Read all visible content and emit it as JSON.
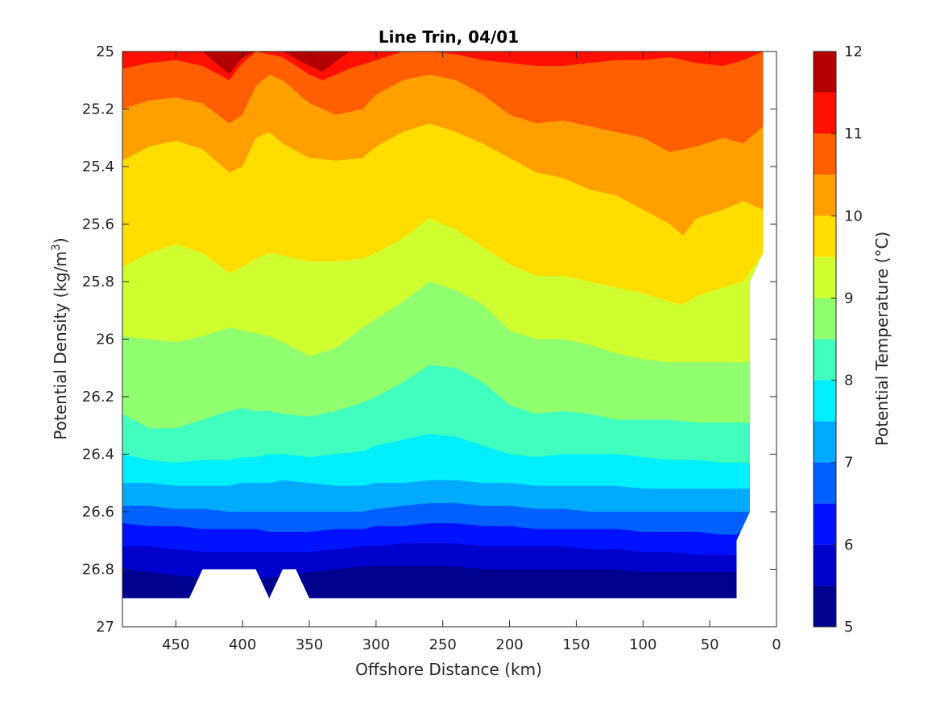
{
  "chart_data": {
    "type": "filled-contour",
    "title": "Line Trin, 04/01",
    "xlabel": "Offshore Distance (km)",
    "ylabel": "Potential Density (kg/m^3)",
    "ylabel_main": "Potential Density (kg/m",
    "ylabel_sup": "3",
    "ylabel_end": ")",
    "colorbar_label": "Potential Temperature (°C)",
    "x_reversed": true,
    "y_reversed": true,
    "xlim": [
      0,
      490
    ],
    "ylim": [
      25,
      27
    ],
    "xticks": [
      450,
      400,
      350,
      300,
      250,
      200,
      150,
      100,
      50,
      0
    ],
    "yticks": [
      "25",
      "25.2",
      "25.4",
      "25.6",
      "25.8",
      "26",
      "26.2",
      "26.4",
      "26.6",
      "26.8",
      "27"
    ],
    "colorbar_ticks": [
      "12",
      "11",
      "10",
      "9",
      "8",
      "7",
      "6",
      "5"
    ],
    "clim": [
      5,
      12
    ],
    "level_step": 0.5,
    "colors": [
      "#00008f",
      "#0000cc",
      "#0011ff",
      "#0060ff",
      "#00aaff",
      "#00efff",
      "#40ffbf",
      "#8fff70",
      "#cfff30",
      "#ffdd00",
      "#ffa000",
      "#ff5f00",
      "#ff1000",
      "#b40000"
    ],
    "bands_top_to_bottom": [
      {
        "range": [
          11.5,
          12.0
        ],
        "color": "#b40000"
      },
      {
        "range": [
          11.0,
          11.5
        ],
        "color": "#ff1000"
      },
      {
        "range": [
          10.5,
          11.0
        ],
        "color": "#ff5f00"
      },
      {
        "range": [
          10.0,
          10.5
        ],
        "color": "#ffa000"
      },
      {
        "range": [
          9.5,
          10.0
        ],
        "color": "#ffdd00"
      },
      {
        "range": [
          9.0,
          9.5
        ],
        "color": "#cfff30"
      },
      {
        "range": [
          8.5,
          9.0
        ],
        "color": "#8fff70"
      },
      {
        "range": [
          8.0,
          8.5
        ],
        "color": "#40ffbf"
      },
      {
        "range": [
          7.5,
          8.0
        ],
        "color": "#00efff"
      },
      {
        "range": [
          7.0,
          7.5
        ],
        "color": "#00aaff"
      },
      {
        "range": [
          6.5,
          7.0
        ],
        "color": "#0060ff"
      },
      {
        "range": [
          6.0,
          6.5
        ],
        "color": "#0011ff"
      },
      {
        "range": [
          5.5,
          6.0
        ],
        "color": "#0000cc"
      },
      {
        "range": [
          5.0,
          5.5
        ],
        "color": "#00008f"
      }
    ],
    "isotherms_density": [
      {
        "temp": 11.5,
        "x": [
          490,
          470,
          430,
          410,
          400,
          390,
          370,
          350,
          340,
          320,
          300,
          280,
          250,
          200,
          150,
          100,
          70,
          50,
          30,
          10
        ],
        "y": [
          25.0,
          25.0,
          25.0,
          25.08,
          25.02,
          25.0,
          25.0,
          25.05,
          25.07,
          25.0,
          25.0,
          25.0,
          25.0,
          25.0,
          25.0,
          25.0,
          25.0,
          25.0,
          25.0,
          25.0
        ]
      },
      {
        "temp": 11.0,
        "x": [
          490,
          470,
          450,
          430,
          410,
          400,
          390,
          370,
          350,
          340,
          320,
          300,
          280,
          260,
          240,
          220,
          200,
          180,
          160,
          140,
          120,
          100,
          80,
          60,
          40,
          25,
          10
        ],
        "y": [
          25.06,
          25.04,
          25.03,
          25.05,
          25.1,
          25.04,
          25.0,
          25.02,
          25.08,
          25.1,
          25.06,
          25.03,
          25.0,
          25.0,
          25.01,
          25.03,
          25.04,
          25.05,
          25.05,
          25.04,
          25.03,
          25.03,
          25.02,
          25.04,
          25.05,
          25.03,
          25.0
        ]
      },
      {
        "temp": 10.5,
        "x": [
          490,
          470,
          450,
          430,
          410,
          400,
          390,
          380,
          370,
          350,
          330,
          310,
          300,
          280,
          260,
          240,
          220,
          200,
          180,
          160,
          140,
          120,
          100,
          80,
          60,
          40,
          25,
          10
        ],
        "y": [
          25.2,
          25.17,
          25.16,
          25.18,
          25.25,
          25.22,
          25.12,
          25.08,
          25.1,
          25.18,
          25.22,
          25.2,
          25.15,
          25.1,
          25.08,
          25.1,
          25.15,
          25.22,
          25.25,
          25.24,
          25.26,
          25.28,
          25.3,
          25.35,
          25.33,
          25.3,
          25.32,
          25.26
        ]
      },
      {
        "temp": 10.0,
        "x": [
          490,
          470,
          450,
          430,
          410,
          400,
          390,
          380,
          370,
          350,
          330,
          310,
          300,
          280,
          260,
          240,
          220,
          200,
          180,
          160,
          140,
          120,
          100,
          80,
          70,
          60,
          40,
          25,
          10
        ],
        "y": [
          25.38,
          25.33,
          25.31,
          25.34,
          25.42,
          25.4,
          25.3,
          25.28,
          25.32,
          25.37,
          25.38,
          25.37,
          25.33,
          25.28,
          25.25,
          25.28,
          25.32,
          25.37,
          25.42,
          25.44,
          25.48,
          25.5,
          25.55,
          25.6,
          25.64,
          25.58,
          25.55,
          25.52,
          25.55
        ]
      },
      {
        "temp": 9.5,
        "x": [
          490,
          470,
          450,
          430,
          410,
          400,
          390,
          380,
          370,
          350,
          330,
          310,
          300,
          280,
          260,
          240,
          220,
          200,
          180,
          160,
          140,
          120,
          100,
          80,
          70,
          60,
          40,
          25,
          10
        ],
        "y": [
          25.75,
          25.7,
          25.67,
          25.7,
          25.77,
          25.75,
          25.72,
          25.7,
          25.71,
          25.73,
          25.73,
          25.72,
          25.7,
          25.65,
          25.58,
          25.62,
          25.68,
          25.74,
          25.78,
          25.78,
          25.8,
          25.82,
          25.84,
          25.87,
          25.88,
          25.85,
          25.82,
          25.8,
          25.7
        ]
      },
      {
        "temp": 9.0,
        "x": [
          490,
          470,
          450,
          430,
          410,
          400,
          390,
          380,
          370,
          350,
          330,
          310,
          300,
          280,
          260,
          240,
          220,
          200,
          180,
          160,
          140,
          120,
          100,
          80,
          60,
          40,
          25,
          20
        ],
        "y": [
          25.99,
          26.0,
          26.01,
          25.99,
          25.96,
          25.97,
          25.98,
          25.99,
          26.01,
          26.06,
          26.03,
          25.96,
          25.93,
          25.87,
          25.8,
          25.83,
          25.88,
          25.97,
          26.0,
          26.0,
          26.02,
          26.05,
          26.07,
          26.08,
          26.08,
          26.08,
          26.08,
          26.08
        ]
      },
      {
        "temp": 8.5,
        "x": [
          490,
          470,
          450,
          430,
          410,
          400,
          390,
          380,
          370,
          350,
          330,
          310,
          300,
          280,
          260,
          240,
          220,
          200,
          180,
          160,
          140,
          120,
          100,
          80,
          60,
          40,
          25,
          20
        ],
        "y": [
          26.26,
          26.31,
          26.31,
          26.28,
          26.25,
          26.24,
          26.25,
          26.25,
          26.26,
          26.27,
          26.25,
          26.22,
          26.2,
          26.15,
          26.09,
          26.1,
          26.15,
          26.23,
          26.26,
          26.25,
          26.26,
          26.28,
          26.28,
          26.28,
          26.29,
          26.29,
          26.29,
          26.29
        ]
      },
      {
        "temp": 8.0,
        "x": [
          490,
          470,
          450,
          430,
          410,
          400,
          390,
          380,
          370,
          350,
          330,
          310,
          300,
          280,
          260,
          240,
          220,
          200,
          180,
          160,
          140,
          120,
          100,
          80,
          60,
          40,
          25,
          20
        ],
        "y": [
          26.4,
          26.42,
          26.43,
          26.42,
          26.42,
          26.41,
          26.41,
          26.4,
          26.4,
          26.41,
          26.4,
          26.39,
          26.37,
          26.35,
          26.33,
          26.34,
          26.37,
          26.4,
          26.41,
          26.4,
          26.4,
          26.4,
          26.41,
          26.42,
          26.42,
          26.43,
          26.43,
          26.43
        ]
      },
      {
        "temp": 7.5,
        "x": [
          490,
          470,
          450,
          430,
          410,
          400,
          390,
          380,
          370,
          350,
          330,
          310,
          300,
          280,
          260,
          240,
          220,
          200,
          180,
          160,
          140,
          120,
          100,
          80,
          60,
          40,
          25,
          20
        ],
        "y": [
          26.5,
          26.5,
          26.51,
          26.51,
          26.51,
          26.5,
          26.5,
          26.5,
          26.49,
          26.5,
          26.51,
          26.51,
          26.5,
          26.5,
          26.49,
          26.49,
          26.5,
          26.5,
          26.51,
          26.51,
          26.51,
          26.51,
          26.52,
          26.52,
          26.52,
          26.52,
          26.52,
          26.52
        ]
      },
      {
        "temp": 7.0,
        "x": [
          490,
          470,
          450,
          430,
          410,
          400,
          390,
          380,
          370,
          350,
          330,
          310,
          300,
          280,
          260,
          240,
          220,
          200,
          180,
          160,
          140,
          120,
          100,
          80,
          60,
          40,
          25,
          20
        ],
        "y": [
          26.58,
          26.58,
          26.59,
          26.59,
          26.6,
          26.6,
          26.6,
          26.6,
          26.6,
          26.6,
          26.6,
          26.6,
          26.59,
          26.58,
          26.57,
          26.57,
          26.58,
          26.58,
          26.59,
          26.59,
          26.6,
          26.6,
          26.6,
          26.6,
          26.6,
          26.6,
          26.6,
          26.6
        ]
      },
      {
        "temp": 6.5,
        "x": [
          490,
          470,
          450,
          430,
          410,
          400,
          390,
          380,
          370,
          350,
          330,
          310,
          300,
          280,
          260,
          240,
          220,
          200,
          180,
          160,
          140,
          120,
          100,
          80,
          60,
          40,
          30,
          25
        ],
        "y": [
          26.64,
          26.65,
          26.65,
          26.66,
          26.66,
          26.66,
          26.66,
          26.67,
          26.67,
          26.67,
          26.66,
          26.66,
          26.65,
          26.65,
          26.64,
          26.64,
          26.65,
          26.65,
          26.66,
          26.66,
          26.66,
          26.66,
          26.67,
          26.67,
          26.67,
          26.68,
          26.68,
          26.66
        ]
      },
      {
        "temp": 6.0,
        "x": [
          490,
          470,
          450,
          430,
          410,
          400,
          390,
          380,
          370,
          350,
          330,
          310,
          300,
          280,
          260,
          240,
          220,
          200,
          180,
          160,
          140,
          120,
          100,
          80,
          60,
          40,
          30
        ],
        "y": [
          26.72,
          26.72,
          26.73,
          26.74,
          26.74,
          26.74,
          26.74,
          26.74,
          26.74,
          26.74,
          26.73,
          26.72,
          26.72,
          26.71,
          26.71,
          26.71,
          26.72,
          26.72,
          26.72,
          26.72,
          26.73,
          26.73,
          26.74,
          26.74,
          26.75,
          26.75,
          26.75
        ]
      },
      {
        "temp": 5.5,
        "x": [
          490,
          470,
          450,
          430,
          410,
          400,
          390,
          380,
          370,
          350,
          330,
          310,
          300,
          280,
          260,
          240,
          220,
          200,
          180,
          160,
          140,
          120,
          100,
          80,
          60,
          40,
          30
        ],
        "y": [
          26.8,
          26.81,
          26.82,
          26.83,
          26.84,
          26.84,
          26.83,
          26.83,
          26.82,
          26.81,
          26.8,
          26.79,
          26.79,
          26.79,
          26.79,
          26.79,
          26.8,
          26.8,
          26.8,
          26.8,
          26.8,
          26.8,
          26.81,
          26.81,
          26.81,
          26.81,
          26.81
        ]
      },
      {
        "temp": 5.0,
        "x": [
          490,
          470,
          450,
          430,
          410,
          400,
          390,
          380,
          370,
          350,
          330,
          310,
          300,
          280,
          260,
          240,
          220,
          200,
          180,
          160,
          140,
          120,
          100,
          80,
          60,
          40,
          30
        ],
        "y": [
          26.9,
          26.9,
          26.9,
          26.9,
          26.9,
          26.9,
          26.9,
          26.9,
          26.9,
          26.87,
          26.84,
          26.83,
          26.83,
          26.83,
          26.83,
          26.84,
          26.86,
          26.88,
          26.88,
          26.88,
          26.89,
          26.9,
          26.9,
          26.9,
          26.9,
          26.9,
          26.9
        ]
      }
    ],
    "data_boundary": {
      "x": [
        490,
        10,
        10,
        20,
        20,
        20,
        30,
        30,
        350,
        360,
        370,
        380,
        390,
        430,
        440,
        490
      ],
      "y": [
        25.0,
        25.0,
        25.7,
        25.8,
        26.6,
        26.6,
        26.7,
        26.9,
        26.9,
        26.8,
        26.8,
        26.9,
        26.8,
        26.8,
        26.9,
        26.9
      ]
    }
  }
}
